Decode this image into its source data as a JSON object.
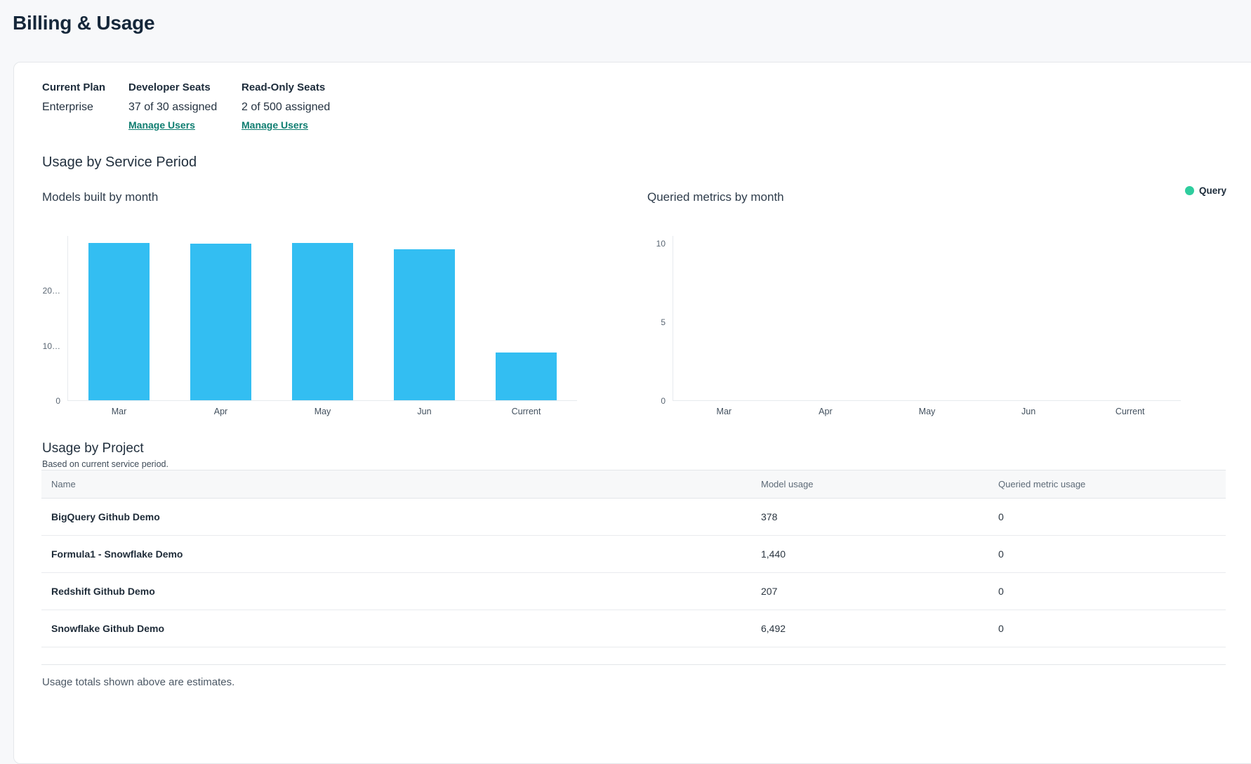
{
  "header": {
    "title": "Billing & Usage"
  },
  "plan": {
    "columns": [
      {
        "label": "Current Plan",
        "value": "Enterprise"
      },
      {
        "label": "Developer Seats",
        "value": "37 of 30 assigned",
        "link": "Manage Users"
      },
      {
        "label": "Read-Only Seats",
        "value": "2 of 500 assigned",
        "link": "Manage Users"
      }
    ]
  },
  "usage_section": {
    "heading": "Usage by Service Period",
    "legend": {
      "label": "Query",
      "color": "#2ecd9e"
    }
  },
  "chart_data": [
    {
      "id": "models-built",
      "type": "bar",
      "title": "Models built by month",
      "categories": [
        "Mar",
        "Apr",
        "May",
        "Jun",
        "Current"
      ],
      "values": [
        28600,
        28500,
        28550,
        27400,
        8700
      ],
      "bar_color": "#33bef2",
      "ylim": [
        0,
        30000
      ],
      "yticks": [
        {
          "value": 0,
          "label": "0"
        },
        {
          "value": 10000,
          "label": "10…"
        },
        {
          "value": 20000,
          "label": "20…"
        }
      ],
      "xlabel": "",
      "ylabel": "",
      "grid": false,
      "legend_position": "none"
    },
    {
      "id": "queried-metrics",
      "type": "bar",
      "title": "Queried metrics by month",
      "series_name": "Query",
      "categories": [
        "Mar",
        "Apr",
        "May",
        "Jun",
        "Current"
      ],
      "values": [
        0,
        0,
        0,
        0,
        0
      ],
      "bar_color": "#2ecd9e",
      "ylim": [
        0,
        10.5
      ],
      "yticks": [
        {
          "value": 0,
          "label": "0"
        },
        {
          "value": 5,
          "label": "5"
        },
        {
          "value": 10,
          "label": "10"
        }
      ],
      "xlabel": "",
      "ylabel": "",
      "grid": false,
      "legend_position": "top-right"
    }
  ],
  "project_section": {
    "heading": "Usage by Project",
    "subheading": "Based on current service period.",
    "table": {
      "columns": [
        "Name",
        "Model usage",
        "Queried metric usage"
      ],
      "rows": [
        {
          "name": "BigQuery Github Demo",
          "model_usage": "378",
          "queried_metric_usage": "0"
        },
        {
          "name": "Formula1 - Snowflake Demo",
          "model_usage": "1,440",
          "queried_metric_usage": "0"
        },
        {
          "name": "Redshift Github Demo",
          "model_usage": "207",
          "queried_metric_usage": "0"
        },
        {
          "name": "Snowflake Github Demo",
          "model_usage": "6,492",
          "queried_metric_usage": "0"
        }
      ]
    },
    "footnote": "Usage totals shown above are estimates."
  },
  "colors": {
    "bar_cyan": "#33bef2",
    "legend_green": "#2ecd9e",
    "link_teal": "#0e7d70",
    "heading_navy": "#15273a",
    "page_background": "#f7f8fa"
  }
}
